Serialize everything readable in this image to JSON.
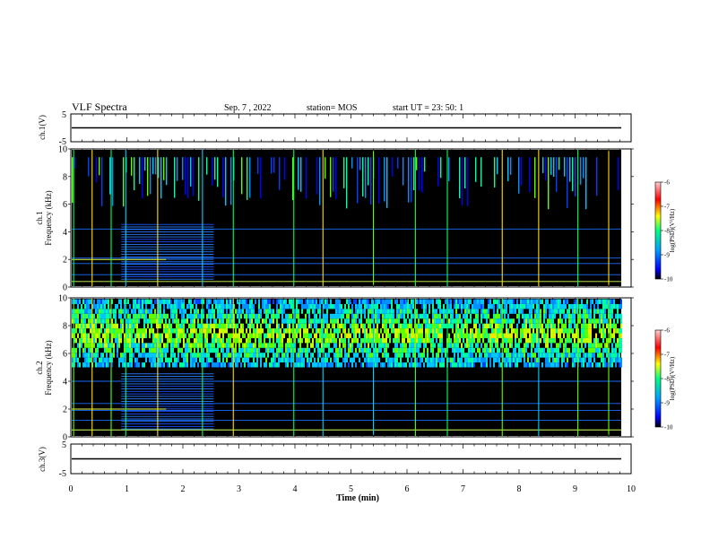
{
  "header": {
    "title": "VLF Spectra",
    "date": "Sep. 7 , 2022",
    "station": "station= MOS",
    "start": "start  UT =   23: 50: 1"
  },
  "chart_data": [
    {
      "type": "line",
      "name": "waveform-ch1",
      "ylabel": "ch.1(V)",
      "ylim": [
        -5,
        5
      ],
      "yticks": [
        "5",
        "-5"
      ],
      "x": [
        0,
        10
      ],
      "y": [
        0,
        0
      ]
    },
    {
      "type": "heatmap",
      "name": "spectrogram-ch1",
      "ylabel": "ch.1\nFrequency (kHz)",
      "ylabel_lines": [
        "ch.1",
        "Frequency (kHz)"
      ],
      "ylim": [
        0,
        10
      ],
      "yticks": [
        "0",
        "2",
        "4",
        "6",
        "8",
        "10"
      ],
      "xlim": [
        0,
        10
      ],
      "colorbar": {
        "label": "log(PSD)(V²/Hz)",
        "range": [
          -10,
          -6
        ],
        "ticks": [
          "-6",
          "-7",
          "-8",
          "-9",
          "-10"
        ],
        "colors": [
          "#000000",
          "#0000ff",
          "#00a0ff",
          "#00ff80",
          "#ffff00",
          "#ff0000",
          "#ffc8c8"
        ]
      }
    },
    {
      "type": "heatmap",
      "name": "spectrogram-ch2",
      "ylabel": "ch.2\nFrequency (kHz)",
      "ylabel_lines": [
        "ch.2",
        "Frequency (kHz)"
      ],
      "ylim": [
        0,
        10
      ],
      "yticks": [
        "0",
        "2",
        "4",
        "6",
        "8",
        "10"
      ],
      "xlim": [
        0,
        10
      ],
      "colorbar": {
        "label": "log(PSD)(V²/Hz)",
        "range": [
          -10,
          -6
        ],
        "ticks": [
          "-6",
          "-7",
          "-8",
          "-9",
          "-10"
        ],
        "colors": [
          "#000000",
          "#0000ff",
          "#00a0ff",
          "#00ff80",
          "#ffff00",
          "#ff0000",
          "#ffc8c8"
        ]
      }
    },
    {
      "type": "line",
      "name": "waveform-ch3",
      "ylabel": "ch.3(V)",
      "ylim": [
        -5,
        5
      ],
      "yticks": [
        "5",
        "-5"
      ],
      "x": [
        0,
        10
      ],
      "y": [
        0,
        0
      ]
    }
  ],
  "xaxis": {
    "label": "Time (min)",
    "range": [
      0,
      10
    ],
    "ticks": [
      "0",
      "1",
      "2",
      "3",
      "4",
      "5",
      "6",
      "7",
      "8",
      "9",
      "10"
    ]
  }
}
